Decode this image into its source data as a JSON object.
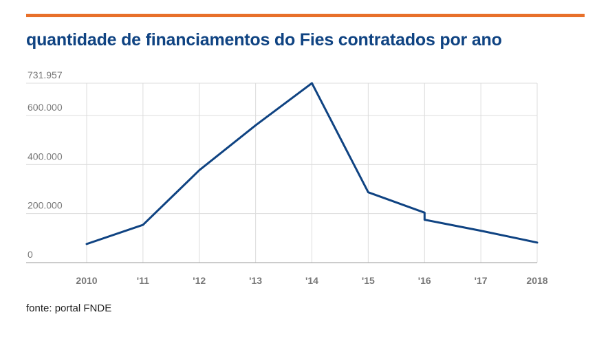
{
  "title": "quantidade de financiamentos do Fies contratados por ano",
  "source": "fonte: portal FNDE",
  "colors": {
    "accent_rule": "#e8702a",
    "title": "#0f4382",
    "line": "#0f4382",
    "grid": "#dcdcdc",
    "axis": "#999999",
    "tick_text": "#777777"
  },
  "chart_data": {
    "type": "line",
    "title": "quantidade de financiamentos do Fies contratados por ano",
    "xlabel": "",
    "ylabel": "",
    "x_ticks": [
      "2010",
      "'11",
      "'12",
      "'13",
      "'14",
      "'15",
      "'16",
      "'17",
      "2018"
    ],
    "y_ticks": [
      {
        "value": 0,
        "label": "0"
      },
      {
        "value": 200000,
        "label": "200.000"
      },
      {
        "value": 400000,
        "label": "400.000"
      },
      {
        "value": 600000,
        "label": "600.000"
      },
      {
        "value": 731957,
        "label": "731.957"
      }
    ],
    "ylim": [
      0,
      731957
    ],
    "xlim": [
      2010,
      2018
    ],
    "grid": true,
    "legend": "none",
    "series": [
      {
        "points": [
          {
            "x": 2010,
            "y": 76000
          },
          {
            "x": 2011,
            "y": 154000
          },
          {
            "x": 2012,
            "y": 377000
          },
          {
            "x": 2013,
            "y": 560000
          },
          {
            "x": 2014,
            "y": 731957
          },
          {
            "x": 2015,
            "y": 287000
          },
          {
            "x": 2016,
            "y": 204000
          },
          {
            "x": 2016,
            "y": 175000
          },
          {
            "x": 2017,
            "y": 130000
          },
          {
            "x": 2018,
            "y": 82000
          }
        ]
      }
    ]
  }
}
